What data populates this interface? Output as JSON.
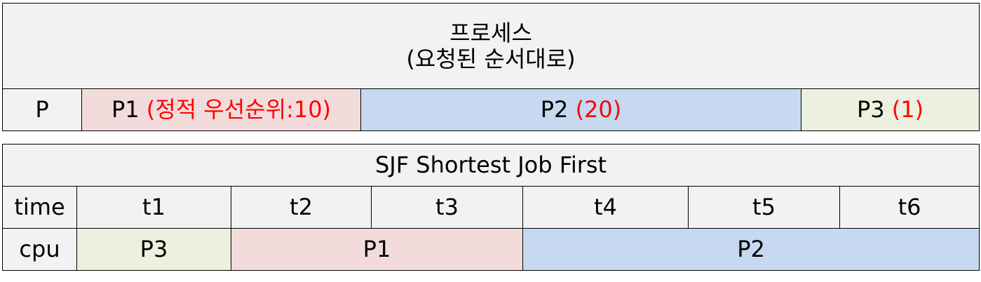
{
  "process_table": {
    "title_line1": "프로세스",
    "title_line2": "(요청된 순서대로)",
    "row_label": "P",
    "processes": [
      {
        "name": "P1",
        "priority_text": "(정적 우선순위:10)"
      },
      {
        "name": "P2",
        "priority_text": "(20)"
      },
      {
        "name": "P3",
        "priority_text": "(1)"
      }
    ]
  },
  "sjf_table": {
    "title": "SJF Shortest Job First",
    "time_label": "time",
    "time_slots": [
      "t1",
      "t2",
      "t3",
      "t4",
      "t5",
      "t6"
    ],
    "cpu_label": "cpu",
    "cpu_assignments": [
      "P3",
      "P1",
      "P2"
    ]
  },
  "colors": {
    "p1_fill": "#f2dcdb",
    "p2_fill": "#c6d9f1",
    "p3_fill": "#ebf1de",
    "header_fill": "#f2f2f2",
    "priority_text": "#ff0000"
  }
}
